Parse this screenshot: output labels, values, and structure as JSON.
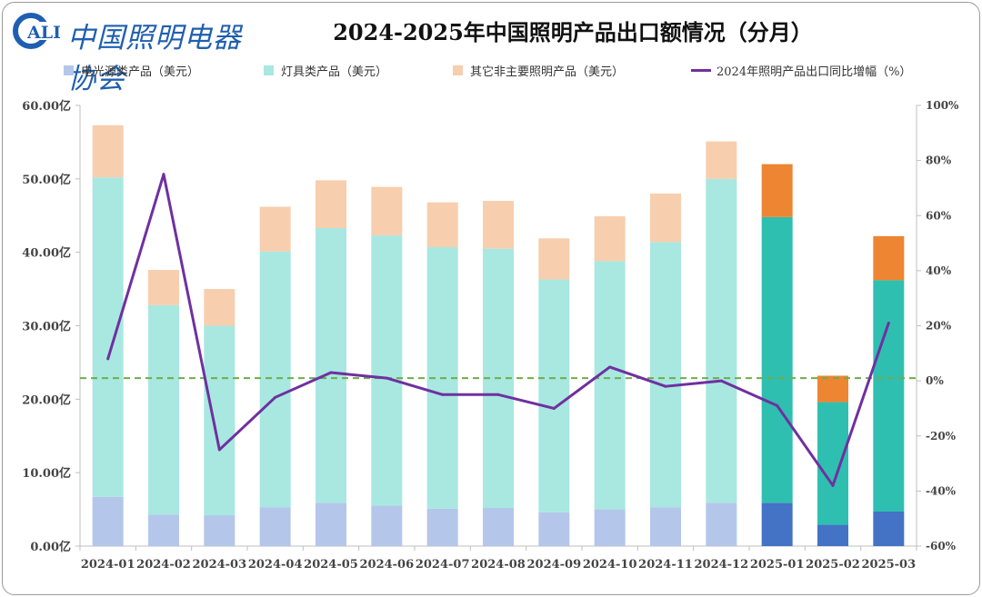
{
  "logo": {
    "text": "中国照明电器协会",
    "mark": "CALI"
  },
  "chart_data": {
    "type": "bar",
    "title": "2024-2025年中国照明产品出口额情况（分月）",
    "stacked": true,
    "categories": [
      "2024-01",
      "2024-02",
      "2024-03",
      "2024-04",
      "2024-05",
      "2024-06",
      "2024-07",
      "2024-08",
      "2024-09",
      "2024-10",
      "2024-11",
      "2024-12",
      "2025-01",
      "2025-02",
      "2025-03"
    ],
    "series": [
      {
        "name": "电光源类产品（美元）",
        "axis": "left",
        "color_2024": "#b4c6ea",
        "color_2025": "#4472c4",
        "values": [
          6.7,
          4.3,
          4.2,
          5.3,
          5.9,
          5.5,
          5.1,
          5.2,
          4.6,
          5.0,
          5.3,
          5.9,
          5.9,
          2.9,
          4.7
        ]
      },
      {
        "name": "灯具类产品（美元）",
        "axis": "left",
        "color_2024": "#a8e8e1",
        "color_2025": "#2fbfb1",
        "values": [
          43.5,
          28.5,
          25.8,
          34.8,
          37.4,
          36.8,
          35.6,
          35.3,
          31.7,
          33.8,
          36.1,
          44.1,
          38.9,
          16.7,
          31.5
        ]
      },
      {
        "name": "其它非主要照明产品（美元）",
        "axis": "left",
        "color_2024": "#f7ceae",
        "color_2025": "#ed8532",
        "values": [
          7.1,
          4.8,
          5.0,
          6.1,
          6.5,
          6.6,
          6.1,
          6.5,
          5.6,
          6.1,
          6.6,
          5.1,
          7.2,
          3.6,
          6.0
        ]
      },
      {
        "name": "2024年照明产品出口同比增幅（%）",
        "axis": "right",
        "type": "line",
        "color": "#7030a0",
        "values": [
          8,
          75,
          -25,
          -6,
          3,
          1,
          -5,
          -5,
          -10,
          5,
          -2,
          0,
          -9,
          -38,
          21
        ]
      }
    ],
    "reference_line": {
      "axis": "right",
      "value": 1,
      "color": "#70ad47",
      "style": "dashed"
    },
    "y_left": {
      "ylim": [
        0,
        60
      ],
      "ticks": [
        "0.00亿",
        "10.00亿",
        "20.00亿",
        "30.00亿",
        "40.00亿",
        "50.00亿",
        "60.00亿"
      ]
    },
    "y_right": {
      "ylim": [
        -60,
        100
      ],
      "ticks": [
        "-60%",
        "-40%",
        "-20%",
        "0%",
        "20%",
        "40%",
        "60%",
        "80%",
        "100%"
      ]
    },
    "legend_position": "top",
    "grid": false
  }
}
